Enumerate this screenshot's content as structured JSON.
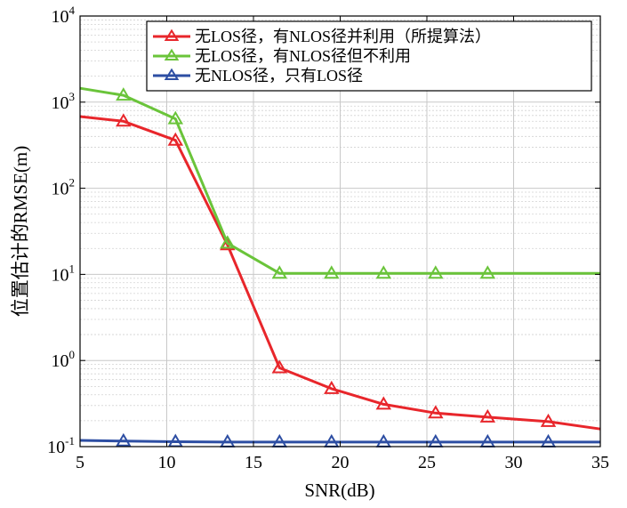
{
  "chart_data": {
    "type": "line",
    "title": "",
    "xlabel": "SNR(dB)",
    "ylabel": "位置估计的RMSE(m)",
    "xlim": [
      5,
      35
    ],
    "ylim": [
      0.1,
      10000
    ],
    "yscale": "log",
    "grid": true,
    "legend_position": "top-right",
    "x_ticks": [
      5,
      10,
      15,
      20,
      25,
      30,
      35
    ],
    "y_ticks": [
      {
        "value": 0.1,
        "base": "10",
        "exp": "-1"
      },
      {
        "value": 1,
        "base": "10",
        "exp": "0"
      },
      {
        "value": 10,
        "base": "10",
        "exp": "1"
      },
      {
        "value": 100,
        "base": "10",
        "exp": "2"
      },
      {
        "value": 1000,
        "base": "10",
        "exp": "3"
      },
      {
        "value": 10000,
        "base": "10",
        "exp": "4"
      }
    ],
    "series": [
      {
        "name": "无LOS径，有NLOS径并利用（所提算法）",
        "color": "#e8262b",
        "x": [
          5,
          7.5,
          10.5,
          13.5,
          16.5,
          19.5,
          22.5,
          25.5,
          28.5,
          32,
          35
        ],
        "values": [
          680,
          600,
          360,
          22,
          0.82,
          0.47,
          0.31,
          0.245,
          0.22,
          0.195,
          0.16
        ],
        "markers": [
          false,
          true,
          true,
          true,
          true,
          true,
          true,
          true,
          true,
          true,
          false
        ]
      },
      {
        "name": "无LOS径，有NLOS径但不利用",
        "color": "#6ac43a",
        "x": [
          5,
          7.5,
          10.5,
          13.5,
          16.5,
          19.5,
          22.5,
          25.5,
          28.5,
          35
        ],
        "values": [
          1450,
          1200,
          640,
          23,
          10.3,
          10.3,
          10.3,
          10.3,
          10.3,
          10.3
        ],
        "markers": [
          false,
          true,
          true,
          true,
          true,
          true,
          true,
          true,
          true,
          false
        ]
      },
      {
        "name": "无NLOS径，只有LOS径",
        "color": "#2d4ea3",
        "x": [
          5,
          7.5,
          10.5,
          13.5,
          16.5,
          19.5,
          22.5,
          25.5,
          28.5,
          32,
          35
        ],
        "values": [
          0.118,
          0.116,
          0.114,
          0.113,
          0.113,
          0.113,
          0.113,
          0.113,
          0.113,
          0.113,
          0.113
        ],
        "markers": [
          false,
          true,
          true,
          true,
          true,
          true,
          true,
          true,
          true,
          true,
          false
        ]
      }
    ]
  }
}
